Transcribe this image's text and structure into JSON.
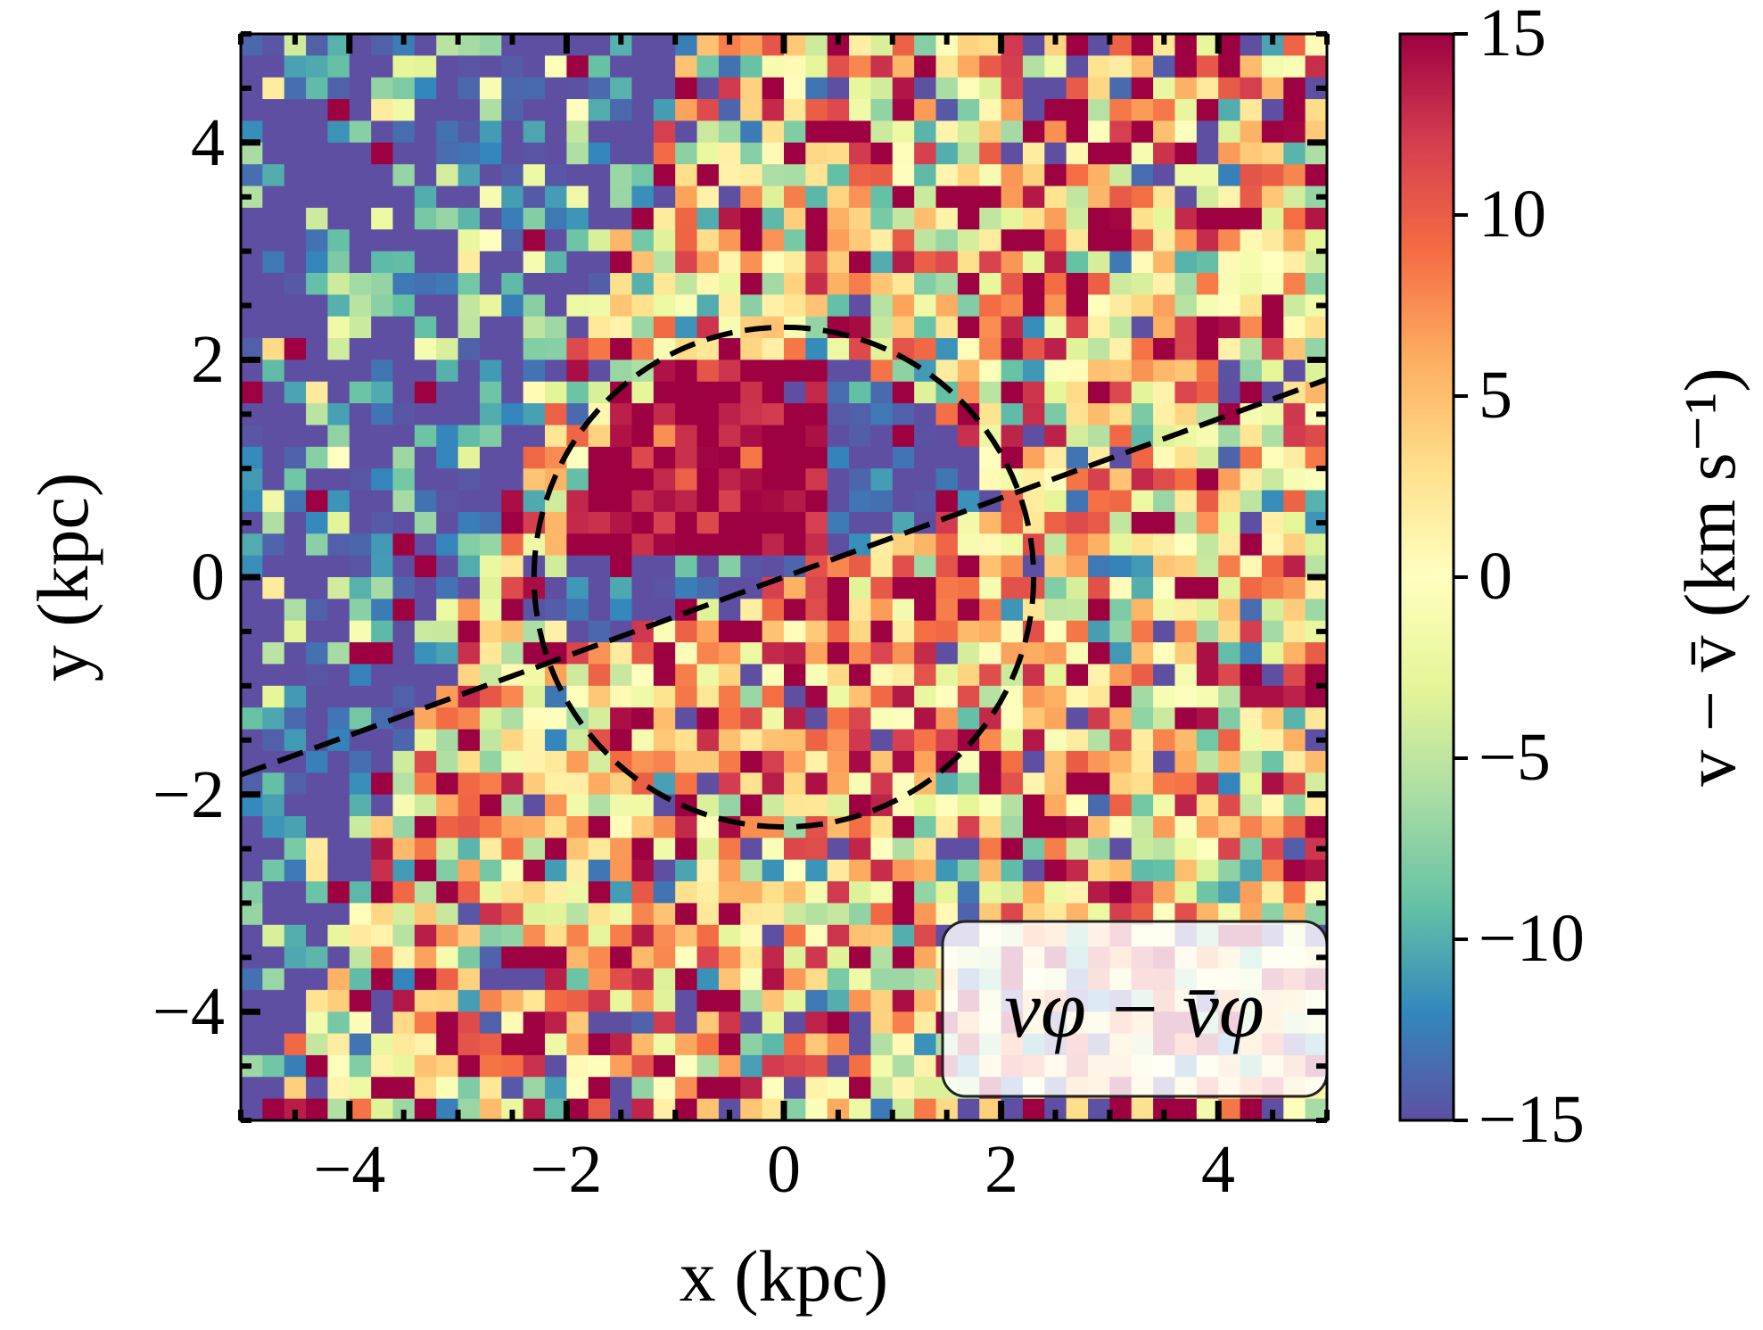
{
  "chart_data": {
    "type": "heatmap",
    "title": "",
    "xlabel": "x (kpc)",
    "ylabel": "y (kpc)",
    "xlim": [
      -5,
      5
    ],
    "ylim": [
      -5,
      5
    ],
    "xticks": [
      -4,
      -2,
      0,
      2,
      4
    ],
    "yticks": [
      -4,
      -2,
      0,
      2,
      4
    ],
    "grid_bins": 50,
    "colorbar": {
      "label": "v − v̄ (km s⁻¹)",
      "vmin": -15,
      "vmax": 15,
      "ticks": [
        -15,
        -10,
        -5,
        0,
        5,
        10,
        15
      ],
      "colormap": "Spectral_r",
      "colors": [
        "#5e4fa2",
        "#3288bd",
        "#66c2a5",
        "#abdda4",
        "#e6f598",
        "#ffffbf",
        "#fee08b",
        "#fdae61",
        "#f46d43",
        "#d53e4f",
        "#9e0142"
      ]
    },
    "legend": {
      "text": "vφ − v̄φ",
      "location": "lower right"
    },
    "annotations": [
      {
        "type": "circle",
        "style": "dashed",
        "center": [
          0,
          0
        ],
        "radius": 2.3
      },
      {
        "type": "line",
        "style": "dashed",
        "from": [
          -5,
          -1.82
        ],
        "to": [
          5,
          1.82
        ]
      }
    ],
    "pattern": {
      "inner_upper_left_value": 15,
      "inner_upper_right_value": -15,
      "inner_lower_value": 10,
      "outer_left_value": -15,
      "outer_ring_value": 3
    }
  },
  "labels": {
    "xtick_labels": [
      "−4",
      "−2",
      "0",
      "2",
      "4"
    ],
    "ytick_labels": [
      "4",
      "2",
      "0",
      "−2",
      "−4"
    ],
    "cbar_tick_labels": [
      "15",
      "10",
      "5",
      "0",
      "−5",
      "−10",
      "−15"
    ]
  }
}
